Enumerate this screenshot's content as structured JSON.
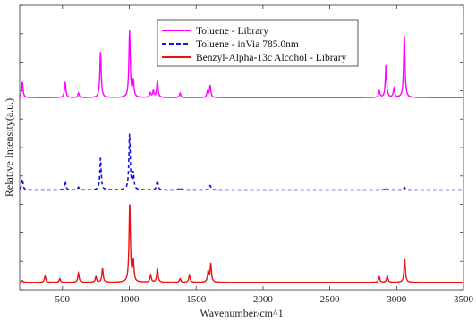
{
  "chart_data": {
    "type": "line",
    "title": "",
    "xlabel": "Wavenumber/cm^1",
    "ylabel": "Relative Intensity(a.u.)",
    "xlim": [
      180,
      3500
    ],
    "xticks": [
      500,
      1000,
      1500,
      2000,
      2500,
      3000,
      3500
    ],
    "xtick_labels": [
      "500",
      "1000",
      "1500",
      "2000",
      "2500",
      "3000",
      "3500"
    ],
    "yticks_labels_shown": false,
    "grid": false,
    "legend_position": "top-center",
    "baseline": 0,
    "peak_width": 6,
    "series": [
      {
        "name": "Toluene - Library",
        "color": "#ff00ff",
        "style": "solid",
        "offset": 2.0,
        "peaks": [
          [
            200,
            0.17
          ],
          [
            520,
            0.17
          ],
          [
            620,
            0.05
          ],
          [
            785,
            0.5
          ],
          [
            1002,
            0.72
          ],
          [
            1030,
            0.18
          ],
          [
            1157,
            0.05
          ],
          [
            1180,
            0.07
          ],
          [
            1210,
            0.18
          ],
          [
            1380,
            0.05
          ],
          [
            1585,
            0.07
          ],
          [
            1605,
            0.13
          ],
          [
            2870,
            0.07
          ],
          [
            2920,
            0.35
          ],
          [
            2980,
            0.1
          ],
          [
            3057,
            0.68
          ]
        ]
      },
      {
        "name": "Toluene - inVia 785.0nm",
        "color": "#1414e6",
        "style": "dashed",
        "offset": 1.0,
        "peaks": [
          [
            200,
            0.12
          ],
          [
            520,
            0.1
          ],
          [
            620,
            0.03
          ],
          [
            785,
            0.35
          ],
          [
            1002,
            0.6
          ],
          [
            1030,
            0.18
          ],
          [
            1210,
            0.11
          ],
          [
            1380,
            0.03
          ],
          [
            1605,
            0.05
          ],
          [
            2920,
            0.03
          ],
          [
            3057,
            0.03
          ]
        ]
      },
      {
        "name": "Benzyl-Alpha-13c Alcohol - Library",
        "color": "#ee1111",
        "style": "solid",
        "offset": 0.0,
        "peaks": [
          [
            200,
            0.02
          ],
          [
            370,
            0.07
          ],
          [
            480,
            0.04
          ],
          [
            620,
            0.1
          ],
          [
            750,
            0.06
          ],
          [
            800,
            0.15
          ],
          [
            1003,
            0.85
          ],
          [
            1030,
            0.22
          ],
          [
            1160,
            0.08
          ],
          [
            1210,
            0.15
          ],
          [
            1380,
            0.04
          ],
          [
            1450,
            0.08
          ],
          [
            1590,
            0.12
          ],
          [
            1610,
            0.2
          ],
          [
            2870,
            0.06
          ],
          [
            2930,
            0.07
          ],
          [
            3060,
            0.25
          ]
        ]
      }
    ]
  }
}
